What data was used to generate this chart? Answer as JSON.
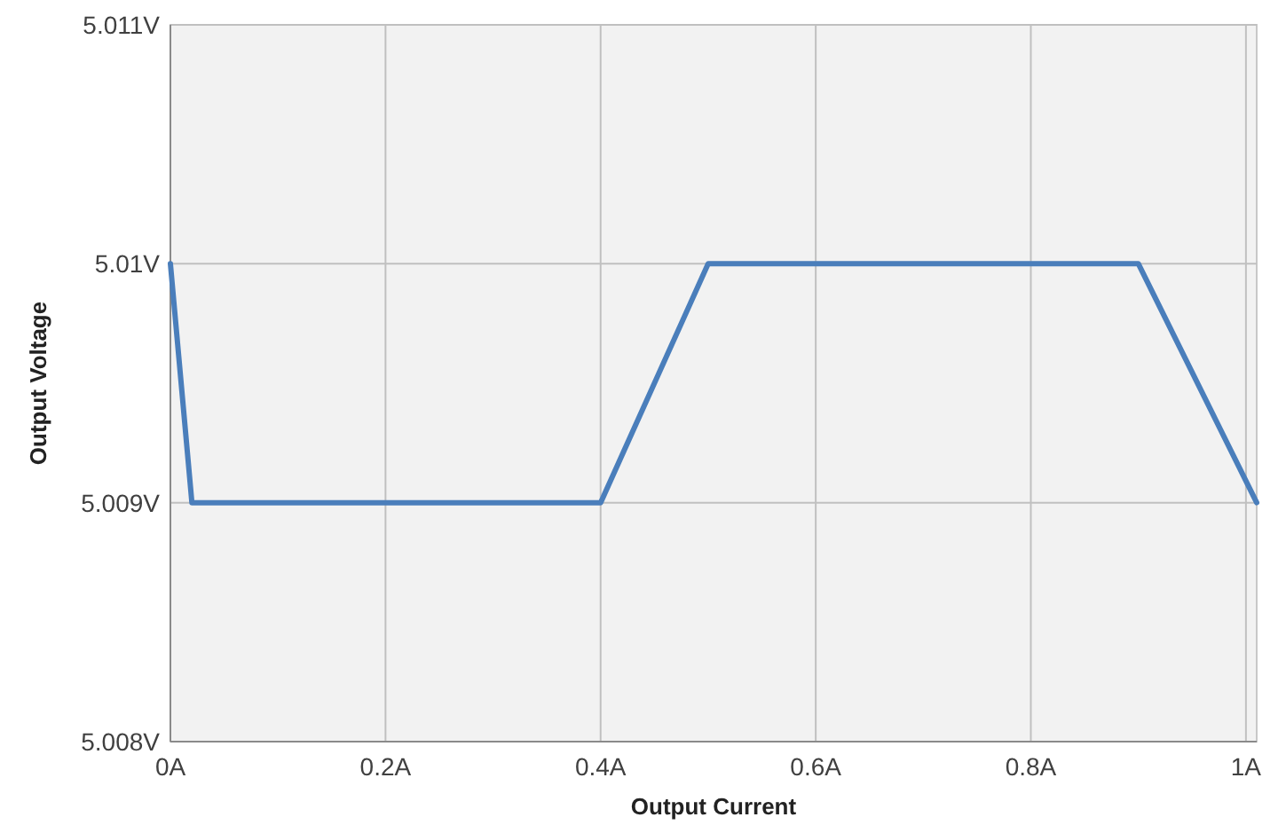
{
  "chart_data": {
    "type": "line",
    "xlabel": "Output Current",
    "ylabel": "Output Voltage",
    "x": [
      0,
      0.02,
      0.4,
      0.5,
      0.9,
      1.01
    ],
    "series": [
      {
        "color": "#4a7ebb",
        "values": [
          5.01,
          5.009,
          5.009,
          5.01,
          5.01,
          5.009
        ]
      }
    ],
    "xlim": [
      0,
      1.01
    ],
    "ylim": [
      5.008,
      5.011
    ],
    "xticks": [
      {
        "value": 0,
        "label": "0A"
      },
      {
        "value": 0.2,
        "label": "0.2A"
      },
      {
        "value": 0.4,
        "label": "0.4A"
      },
      {
        "value": 0.6,
        "label": "0.6A"
      },
      {
        "value": 0.8,
        "label": "0.8A"
      },
      {
        "value": 1,
        "label": "1A"
      }
    ],
    "yticks": [
      {
        "value": 5.008,
        "label": "5.008V"
      },
      {
        "value": 5.009,
        "label": "5.009V"
      },
      {
        "value": 5.01,
        "label": "5.01V"
      },
      {
        "value": 5.011,
        "label": "5.011V"
      }
    ],
    "grid": true,
    "marker": "none",
    "line_style": "solid"
  }
}
